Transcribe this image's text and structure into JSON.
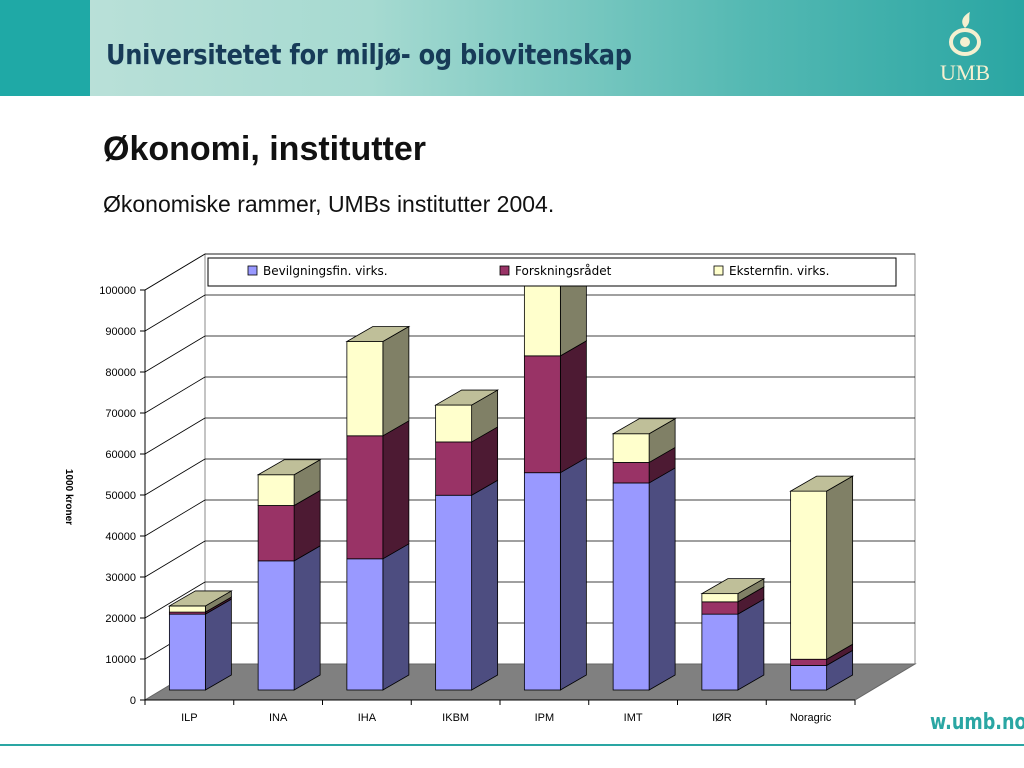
{
  "header": {
    "title": "Universitetet for miljø- og biovitenskap",
    "logo_text": "UMB"
  },
  "slide": {
    "title": "Økonomi, institutter",
    "subtitle": "Økonomiske rammer, UMBs institutter 2004."
  },
  "footer": {
    "url": "w.umb.no"
  },
  "colors": {
    "banner": "#3fb0ad",
    "series": [
      "#9999ff",
      "#993366",
      "#ffffcc"
    ]
  },
  "chart_data": {
    "type": "bar",
    "stacked": true,
    "three_d": true,
    "categories": [
      "ILP",
      "INA",
      "IHA",
      "IKBM",
      "IPM",
      "IMT",
      "IØR",
      "Noragric"
    ],
    "series": [
      {
        "name": "Bevilgningsfin. virks.",
        "color": "#9999ff",
        "values": [
          18500,
          31500,
          32000,
          47500,
          53000,
          50500,
          18500,
          6000
        ]
      },
      {
        "name": "Forskningsrådet",
        "color": "#993366",
        "values": [
          500,
          13500,
          30000,
          13000,
          28500,
          5000,
          3000,
          1500
        ]
      },
      {
        "name": "Eksternfin. virks.",
        "color": "#ffffcc",
        "values": [
          1500,
          7500,
          23000,
          9000,
          17500,
          7000,
          2000,
          41000
        ]
      }
    ],
    "yticks": [
      "0",
      "10000",
      "20000",
      "30000",
      "40000",
      "50000",
      "60000",
      "70000",
      "80000",
      "90000",
      "100000"
    ],
    "ylim": [
      0,
      100000
    ],
    "ylabel": "1000 kroner",
    "xlabel": "",
    "title": "",
    "grid": true,
    "legend_position": "top"
  }
}
